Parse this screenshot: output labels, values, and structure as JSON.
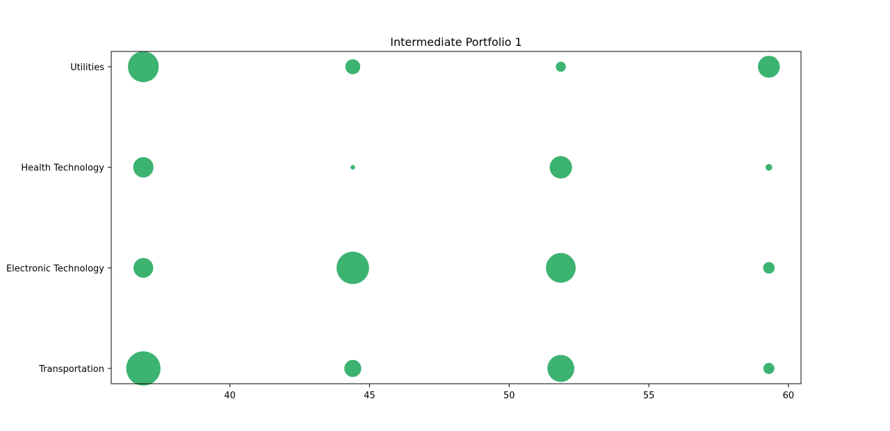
{
  "chart_data": {
    "type": "scatter",
    "title": "Intermediate Portfolio 1",
    "xlabel": "",
    "ylabel": "",
    "xlim": [
      35.75,
      60.45
    ],
    "x_ticks": [
      "40",
      "45",
      "50",
      "55",
      "60"
    ],
    "x_tick_values": [
      40,
      45,
      50,
      55,
      60
    ],
    "categories": [
      "Transportation",
      "Electronic Technology",
      "Health Technology",
      "Utilities"
    ],
    "grid": false,
    "legend": "none",
    "marker_color": "#3cb371",
    "points": [
      {
        "x": 36.9,
        "category": "Utilities",
        "size": 850
      },
      {
        "x": 44.4,
        "category": "Utilities",
        "size": 200
      },
      {
        "x": 51.85,
        "category": "Utilities",
        "size": 90
      },
      {
        "x": 59.3,
        "category": "Utilities",
        "size": 430
      },
      {
        "x": 36.9,
        "category": "Health Technology",
        "size": 370
      },
      {
        "x": 44.4,
        "category": "Health Technology",
        "size": 18
      },
      {
        "x": 51.85,
        "category": "Health Technology",
        "size": 450
      },
      {
        "x": 59.3,
        "category": "Health Technology",
        "size": 40
      },
      {
        "x": 36.9,
        "category": "Electronic Technology",
        "size": 350
      },
      {
        "x": 44.4,
        "category": "Electronic Technology",
        "size": 940
      },
      {
        "x": 51.85,
        "category": "Electronic Technology",
        "size": 790
      },
      {
        "x": 59.3,
        "category": "Electronic Technology",
        "size": 120
      },
      {
        "x": 36.9,
        "category": "Transportation",
        "size": 1050
      },
      {
        "x": 44.4,
        "category": "Transportation",
        "size": 260
      },
      {
        "x": 51.85,
        "category": "Transportation",
        "size": 650
      },
      {
        "x": 59.3,
        "category": "Transportation",
        "size": 110
      }
    ]
  }
}
